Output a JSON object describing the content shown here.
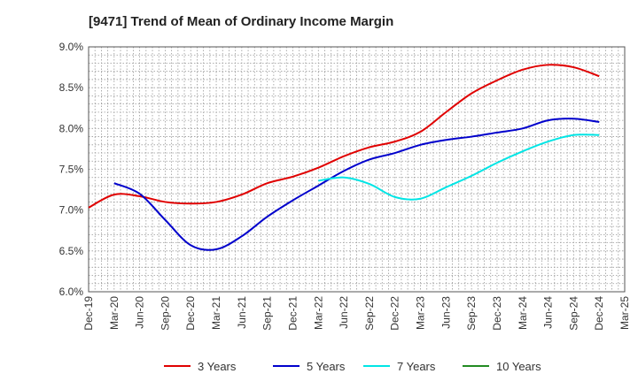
{
  "chart_data": {
    "type": "line",
    "title": "[9471]  Trend of Mean of Ordinary Income Margin",
    "xlabel": "",
    "ylabel": "",
    "x_tick_labels": [
      "Dec-19",
      "Mar-20",
      "Jun-20",
      "Sep-20",
      "Dec-20",
      "Mar-21",
      "Jun-21",
      "Sep-21",
      "Dec-21",
      "Mar-22",
      "Jun-22",
      "Sep-22",
      "Dec-22",
      "Mar-23",
      "Jun-23",
      "Sep-23",
      "Dec-23",
      "Mar-24",
      "Jun-24",
      "Sep-24",
      "Dec-24",
      "Mar-25"
    ],
    "y_tick_labels": [
      "9.0%",
      "8.5%",
      "8.0%",
      "7.5%",
      "7.0%",
      "6.5%",
      "6.0%"
    ],
    "ylim": [
      6.0,
      9.0
    ],
    "grid": true,
    "legend_position": "bottom",
    "series": [
      {
        "name": "3 Years",
        "color": "#e00000",
        "x": [
          "Dec-19",
          "Mar-20",
          "Jun-20",
          "Sep-20",
          "Dec-20",
          "Mar-21",
          "Jun-21",
          "Sep-21",
          "Dec-21",
          "Mar-22",
          "Jun-22",
          "Sep-22",
          "Dec-22",
          "Mar-23",
          "Jun-23",
          "Sep-23",
          "Dec-23",
          "Mar-24",
          "Jun-24",
          "Sep-24",
          "Dec-24"
        ],
        "values": [
          7.03,
          7.19,
          7.17,
          7.1,
          7.08,
          7.1,
          7.19,
          7.33,
          7.41,
          7.52,
          7.66,
          7.77,
          7.84,
          7.96,
          8.2,
          8.43,
          8.59,
          8.72,
          8.78,
          8.75,
          8.64
        ]
      },
      {
        "name": "5 Years",
        "color": "#0000cc",
        "x": [
          "Mar-20",
          "Jun-20",
          "Sep-20",
          "Dec-20",
          "Mar-21",
          "Jun-21",
          "Sep-21",
          "Dec-21",
          "Mar-22",
          "Jun-22",
          "Sep-22",
          "Dec-22",
          "Mar-23",
          "Jun-23",
          "Sep-23",
          "Dec-23",
          "Mar-24",
          "Jun-24",
          "Sep-24",
          "Dec-24"
        ],
        "values": [
          7.33,
          7.2,
          6.88,
          6.57,
          6.52,
          6.68,
          6.92,
          7.12,
          7.3,
          7.48,
          7.62,
          7.7,
          7.8,
          7.86,
          7.9,
          7.95,
          8.0,
          8.1,
          8.12,
          8.08
        ]
      },
      {
        "name": "7 Years",
        "color": "#00e5e5",
        "x": [
          "Mar-22",
          "Jun-22",
          "Sep-22",
          "Dec-22",
          "Mar-23",
          "Jun-23",
          "Sep-23",
          "Dec-23",
          "Mar-24",
          "Jun-24",
          "Sep-24",
          "Dec-24"
        ],
        "values": [
          7.36,
          7.4,
          7.32,
          7.16,
          7.14,
          7.28,
          7.42,
          7.58,
          7.72,
          7.84,
          7.92,
          7.92
        ]
      },
      {
        "name": "10 Years",
        "color": "#228b22",
        "x": [],
        "values": []
      }
    ]
  }
}
